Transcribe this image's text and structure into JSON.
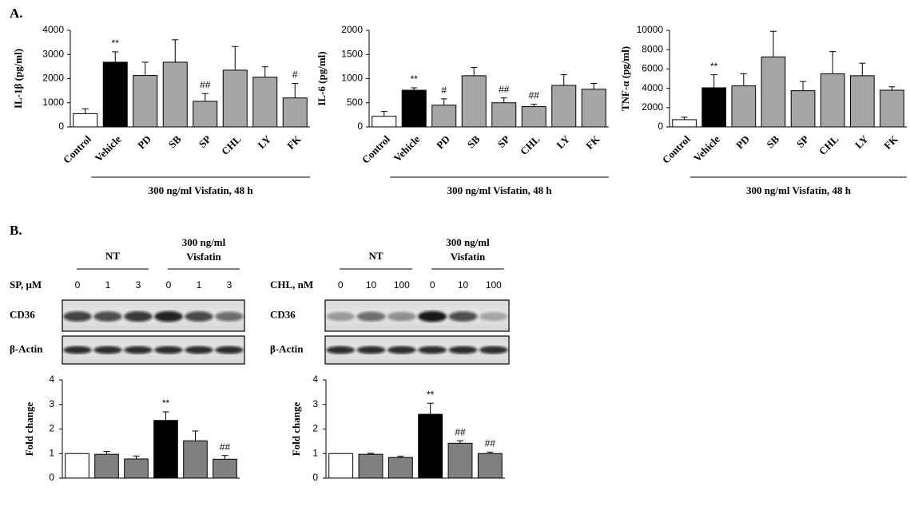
{
  "panels": [
    "A.",
    "B."
  ],
  "chart_data": [
    {
      "type": "bar",
      "y_label": "IL-1β (pg/ml)",
      "categories": [
        "Control",
        "Vehicle",
        "PD",
        "SB",
        "SP",
        "CHL",
        "LY",
        "FK"
      ],
      "values": [
        550,
        2680,
        2130,
        2680,
        1060,
        2350,
        2060,
        1200
      ],
      "errors": [
        200,
        430,
        550,
        930,
        320,
        980,
        430,
        600
      ],
      "annotations": [
        null,
        "**",
        null,
        null,
        "##",
        null,
        null,
        "#"
      ],
      "colors": [
        "#ffffff",
        "#000000",
        "#a6a6a6",
        "#a6a6a6",
        "#a6a6a6",
        "#a6a6a6",
        "#a6a6a6",
        "#a6a6a6"
      ],
      "group_label": "300 ng/ml Visfatin, 48 h",
      "ylim": [
        0,
        4000
      ],
      "yticks": [
        0,
        1000,
        2000,
        3000,
        4000
      ],
      "grid": false
    },
    {
      "type": "bar",
      "y_label": "IL-6 (pg/ml)",
      "categories": [
        "Control",
        "Vehicle",
        "PD",
        "SB",
        "SP",
        "CHL",
        "LY",
        "FK"
      ],
      "values": [
        220,
        760,
        450,
        1060,
        500,
        420,
        860,
        780
      ],
      "errors": [
        100,
        50,
        130,
        170,
        100,
        50,
        220,
        120
      ],
      "annotations": [
        null,
        "**",
        "#",
        null,
        "##",
        "##",
        null,
        null
      ],
      "colors": [
        "#ffffff",
        "#000000",
        "#a6a6a6",
        "#a6a6a6",
        "#a6a6a6",
        "#a6a6a6",
        "#a6a6a6",
        "#a6a6a6"
      ],
      "group_label": "300 ng/ml Visfatin, 48 h",
      "ylim": [
        0,
        2000
      ],
      "yticks": [
        0,
        500,
        1000,
        1500,
        2000
      ],
      "grid": false
    },
    {
      "type": "bar",
      "y_label": "TNF-α (pg/ml)",
      "categories": [
        "Control",
        "Vehicle",
        "PD",
        "SB",
        "SP",
        "CHL",
        "LY",
        "FK"
      ],
      "values": [
        750,
        4050,
        4250,
        7250,
        3750,
        5500,
        5300,
        3800
      ],
      "errors": [
        250,
        1350,
        1250,
        2650,
        950,
        2300,
        1300,
        350
      ],
      "annotations": [
        null,
        "**",
        null,
        null,
        null,
        null,
        null,
        null
      ],
      "colors": [
        "#ffffff",
        "#000000",
        "#a6a6a6",
        "#a6a6a6",
        "#a6a6a6",
        "#a6a6a6",
        "#a6a6a6",
        "#a6a6a6"
      ],
      "group_label": "300 ng/ml Visfatin, 48 h",
      "ylim": [
        0,
        10000
      ],
      "yticks": [
        0,
        2000,
        4000,
        6000,
        8000,
        10000
      ],
      "grid": false
    },
    {
      "type": "bar",
      "y_label": "Fold change",
      "x_label": "SP, μM",
      "categories": [
        "0",
        "1",
        "3",
        "0",
        "1",
        "3"
      ],
      "groups": [
        {
          "label": "NT"
        },
        {
          "label": [
            "300 ng/ml",
            "Visfatin"
          ]
        }
      ],
      "blot_rows": [
        "CD36",
        "β-Actin"
      ],
      "values": [
        1,
        0.97,
        0.78,
        2.35,
        1.52,
        0.77
      ],
      "errors": [
        0,
        0.12,
        0.12,
        0.35,
        0.4,
        0.15
      ],
      "annotations": [
        null,
        null,
        null,
        "**",
        null,
        "##"
      ],
      "colors": [
        "#ffffff",
        "#808080",
        "#808080",
        "#000000",
        "#808080",
        "#808080"
      ],
      "ylim": [
        0,
        4
      ],
      "yticks": [
        0,
        1,
        2,
        3,
        4
      ],
      "grid": false
    },
    {
      "type": "bar",
      "y_label": "Fold change",
      "x_label": "CHL, nM",
      "categories": [
        "0",
        "10",
        "100",
        "0",
        "10",
        "100"
      ],
      "groups": [
        {
          "label": "NT"
        },
        {
          "label": [
            "300 ng/ml",
            "Visfatin"
          ]
        }
      ],
      "blot_rows": [
        "CD36",
        "β-Actin"
      ],
      "values": [
        1,
        0.97,
        0.84,
        2.6,
        1.42,
        1.0
      ],
      "errors": [
        0,
        0.04,
        0.05,
        0.45,
        0.1,
        0.06
      ],
      "annotations": [
        null,
        null,
        null,
        "**",
        "##",
        "##"
      ],
      "colors": [
        "#ffffff",
        "#808080",
        "#808080",
        "#000000",
        "#808080",
        "#808080"
      ],
      "ylim": [
        0,
        4
      ],
      "yticks": [
        0,
        1,
        2,
        3,
        4
      ],
      "grid": false
    }
  ]
}
